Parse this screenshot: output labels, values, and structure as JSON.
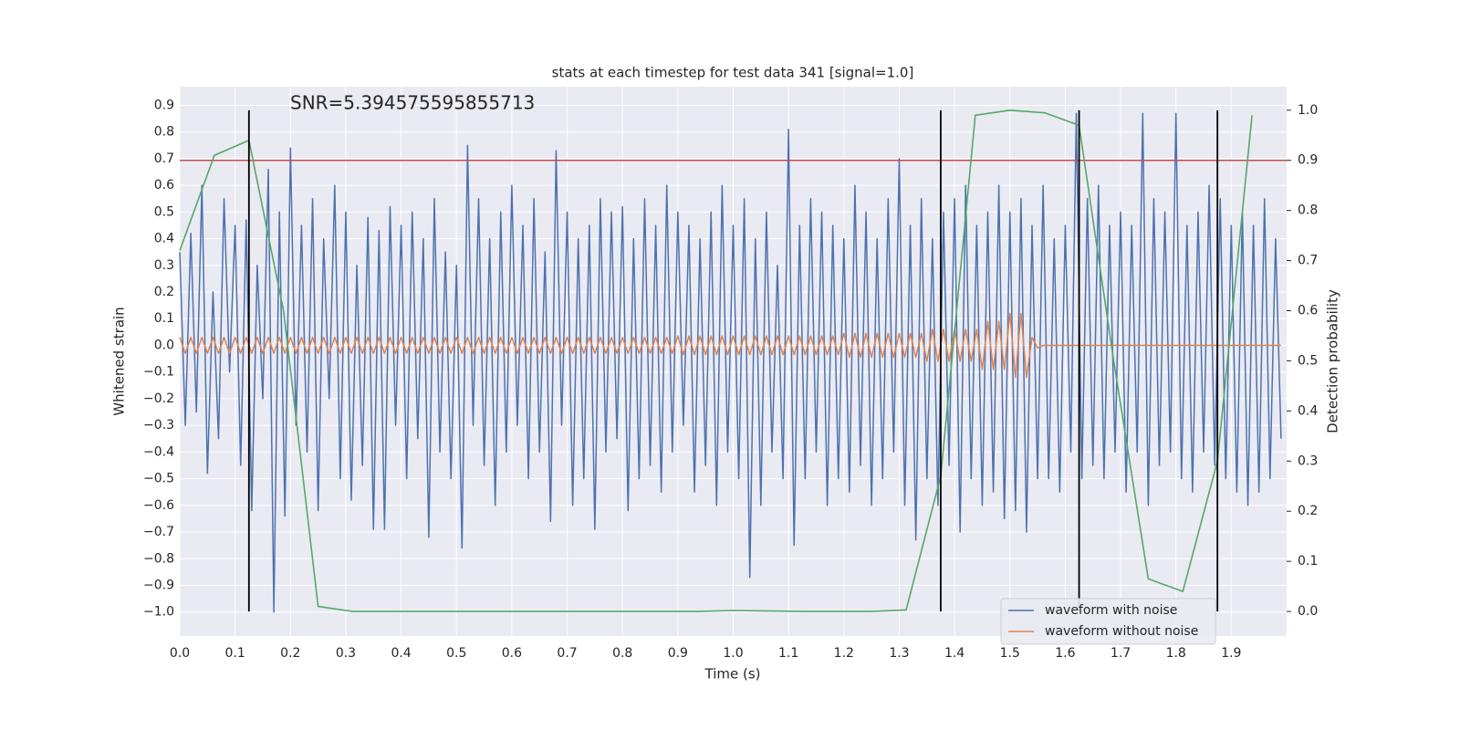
{
  "chart_data": {
    "type": "line",
    "title": "stats at each timestep for test data 341 [signal=1.0]",
    "annotation": "SNR=5.394575595855713",
    "x_label": "Time (s)",
    "y_label": "Whitened strain",
    "y2_label": "Detection probability",
    "xlim": [
      0,
      2
    ],
    "xticks": [
      {
        "value": 0,
        "label": "0.0"
      },
      0.1,
      0.2,
      0.3,
      0.4,
      0.5,
      0.6,
      0.7,
      0.8,
      0.9,
      {
        "value": 1,
        "label": "1.0"
      },
      1.1,
      1.2,
      1.3,
      1.4,
      1.5,
      1.6,
      1.7,
      1.8,
      1.9
    ],
    "ylim": [
      -1.09,
      0.97
    ],
    "yticks": [
      {
        "value": -1,
        "label": "−1.0"
      },
      {
        "value": -0.9,
        "label": "−0.9"
      },
      {
        "value": -0.8,
        "label": "−0.8"
      },
      {
        "value": -0.7,
        "label": "−0.7"
      },
      {
        "value": -0.6,
        "label": "−0.6"
      },
      {
        "value": -0.5,
        "label": "−0.5"
      },
      {
        "value": -0.4,
        "label": "−0.4"
      },
      {
        "value": -0.3,
        "label": "−0.3"
      },
      {
        "value": -0.2,
        "label": "−0.2"
      },
      {
        "value": -0.1,
        "label": "−0.1"
      },
      {
        "value": 0,
        "label": "0.0"
      },
      0.1,
      0.2,
      0.3,
      0.4,
      0.5,
      0.6,
      0.7,
      0.8,
      0.9
    ],
    "y2lim": [
      -0.049,
      1.047
    ],
    "y2ticks": [
      {
        "value": 0,
        "label": "0.0"
      },
      0.1,
      0.2,
      0.3,
      0.4,
      0.5,
      0.6,
      0.7,
      0.8,
      0.9,
      {
        "value": 1,
        "label": "1.0"
      }
    ],
    "grid": true,
    "legend": "lower right",
    "threshold": 0.9,
    "threshold_color": "#c44e52",
    "vlines": [
      0.125,
      1.375,
      1.625,
      1.875
    ],
    "vline_color": "#000000",
    "x": [
      0,
      0.01,
      0.02,
      0.03,
      0.04,
      0.05,
      0.06,
      0.07,
      0.08,
      0.09,
      0.1,
      0.11,
      0.12,
      0.13,
      0.14,
      0.15,
      0.16,
      0.17,
      0.18,
      0.19,
      0.2,
      0.21,
      0.22,
      0.23,
      0.24,
      0.25,
      0.26,
      0.27,
      0.28,
      0.29,
      0.3,
      0.31,
      0.32,
      0.33,
      0.34,
      0.35,
      0.36,
      0.37,
      0.38,
      0.39,
      0.4,
      0.41,
      0.42,
      0.43,
      0.44,
      0.45,
      0.46,
      0.47,
      0.48,
      0.49,
      0.5,
      0.51,
      0.52,
      0.53,
      0.54,
      0.55,
      0.56,
      0.57,
      0.58,
      0.59,
      0.6,
      0.61,
      0.62,
      0.63,
      0.64,
      0.65,
      0.66,
      0.67,
      0.68,
      0.69,
      0.7,
      0.71,
      0.72,
      0.73,
      0.74,
      0.75,
      0.76,
      0.77,
      0.78,
      0.79,
      0.8,
      0.81,
      0.82,
      0.83,
      0.84,
      0.85,
      0.86,
      0.87,
      0.88,
      0.89,
      0.9,
      0.91,
      0.92,
      0.93,
      0.94,
      0.95,
      0.96,
      0.97,
      0.98,
      0.99,
      1,
      1.01,
      1.02,
      1.03,
      1.04,
      1.05,
      1.06,
      1.07,
      1.08,
      1.09,
      1.1,
      1.11,
      1.12,
      1.13,
      1.14,
      1.15,
      1.16,
      1.17,
      1.18,
      1.19,
      1.2,
      1.21,
      1.22,
      1.23,
      1.24,
      1.25,
      1.26,
      1.27,
      1.28,
      1.29,
      1.3,
      1.31,
      1.32,
      1.33,
      1.34,
      1.35,
      1.36,
      1.37,
      1.38,
      1.39,
      1.4,
      1.41,
      1.42,
      1.43,
      1.44,
      1.45,
      1.46,
      1.47,
      1.48,
      1.49,
      1.5,
      1.51,
      1.52,
      1.53,
      1.54,
      1.55,
      1.56,
      1.57,
      1.58,
      1.59,
      1.6,
      1.61,
      1.62,
      1.63,
      1.64,
      1.65,
      1.66,
      1.67,
      1.68,
      1.69,
      1.7,
      1.71,
      1.72,
      1.73,
      1.74,
      1.75,
      1.76,
      1.77,
      1.78,
      1.79,
      1.8,
      1.81,
      1.82,
      1.83,
      1.84,
      1.85,
      1.86,
      1.87,
      1.88,
      1.89,
      1.9,
      1.91,
      1.92,
      1.93,
      1.94,
      1.95,
      1.96,
      1.97,
      1.98,
      1.99
    ],
    "series": [
      {
        "name": "waveform with noise",
        "color": "#4c72b0",
        "values": [
          0.35,
          -0.3,
          0.42,
          -0.25,
          0.6,
          -0.48,
          0.2,
          -0.35,
          0.55,
          -0.1,
          0.45,
          -0.45,
          0.47,
          -0.62,
          0.3,
          -0.2,
          0.66,
          -1.0,
          0.5,
          -0.64,
          0.74,
          -0.3,
          0.45,
          -0.4,
          0.55,
          -0.62,
          0.4,
          -0.2,
          0.6,
          -0.5,
          0.5,
          -0.58,
          0.3,
          -0.45,
          0.48,
          -0.69,
          0.43,
          -0.69,
          0.52,
          -0.3,
          0.45,
          -0.5,
          0.5,
          -0.35,
          0.4,
          -0.72,
          0.55,
          -0.4,
          0.35,
          -0.5,
          0.3,
          -0.76,
          0.75,
          -0.3,
          0.55,
          -0.45,
          0.4,
          -0.6,
          0.5,
          -0.4,
          0.6,
          -0.3,
          0.45,
          -0.5,
          0.55,
          -0.4,
          0.35,
          -0.66,
          0.73,
          -0.3,
          0.5,
          -0.6,
          0.4,
          -0.5,
          0.45,
          -0.69,
          0.55,
          -0.4,
          0.5,
          -0.35,
          0.52,
          -0.62,
          0.4,
          -0.5,
          0.55,
          -0.45,
          0.45,
          -0.55,
          0.6,
          -0.4,
          0.5,
          -0.3,
          0.45,
          -0.55,
          0.4,
          -0.45,
          0.5,
          -0.6,
          0.6,
          -0.4,
          0.45,
          -0.5,
          0.55,
          -0.87,
          0.4,
          -0.6,
          0.5,
          -0.4,
          0.3,
          -0.5,
          0.81,
          -0.75,
          0.45,
          -0.5,
          0.55,
          -0.4,
          0.5,
          -0.6,
          0.45,
          -0.5,
          0.4,
          -0.55,
          0.6,
          -0.45,
          0.5,
          -0.6,
          0.4,
          -0.5,
          0.55,
          -0.4,
          0.7,
          -0.6,
          0.45,
          -0.73,
          0.55,
          -0.5,
          0.4,
          -0.6,
          0.5,
          -0.45,
          0.55,
          -0.7,
          0.6,
          -0.5,
          0.45,
          -0.6,
          0.5,
          -0.55,
          0.6,
          -0.65,
          0.5,
          -0.62,
          0.55,
          -0.7,
          0.45,
          -0.5,
          0.6,
          -0.5,
          0.4,
          -0.55,
          0.45,
          -0.4,
          0.87,
          -0.5,
          0.55,
          -0.45,
          0.6,
          -0.5,
          0.45,
          -0.4,
          0.5,
          -0.55,
          0.45,
          -0.4,
          0.87,
          -0.6,
          0.55,
          -0.45,
          0.5,
          -0.4,
          0.87,
          -0.5,
          0.45,
          -0.55,
          0.5,
          -0.4,
          0.6,
          -0.45,
          0.55,
          -0.5,
          0.45,
          -0.55,
          0.5,
          -0.6,
          0.45,
          -0.55,
          0.55,
          -0.5,
          0.4,
          -0.35
        ]
      },
      {
        "name": "waveform without noise",
        "color": "#dd8452",
        "values": [
          0.03,
          -0.03,
          0.03,
          -0.03,
          0.03,
          -0.03,
          0.03,
          -0.03,
          0.03,
          -0.03,
          0.03,
          -0.03,
          0.03,
          -0.03,
          0.03,
          -0.03,
          0.03,
          -0.03,
          0.03,
          -0.03,
          0.03,
          -0.03,
          0.03,
          -0.03,
          0.03,
          -0.03,
          0.03,
          -0.03,
          0.03,
          -0.03,
          0.03,
          -0.03,
          0.03,
          -0.03,
          0.03,
          -0.03,
          0.03,
          -0.03,
          0.03,
          -0.03,
          0.03,
          -0.03,
          0.03,
          -0.03,
          0.03,
          -0.03,
          0.03,
          -0.03,
          0.03,
          -0.03,
          0.03,
          -0.03,
          0.03,
          -0.03,
          0.03,
          -0.03,
          0.03,
          -0.03,
          0.03,
          -0.03,
          0.03,
          -0.03,
          0.03,
          -0.03,
          0.03,
          -0.03,
          0.03,
          -0.03,
          0.03,
          -0.03,
          0.03,
          -0.03,
          0.03,
          -0.03,
          0.03,
          -0.03,
          0.03,
          -0.03,
          0.03,
          -0.03,
          0.03,
          -0.03,
          0.03,
          -0.03,
          0.03,
          -0.03,
          0.03,
          -0.03,
          0.03,
          -0.03,
          0.035,
          -0.035,
          0.035,
          -0.035,
          0.035,
          -0.035,
          0.035,
          -0.035,
          0.035,
          -0.035,
          0.035,
          -0.035,
          0.035,
          -0.035,
          0.035,
          -0.035,
          0.035,
          -0.035,
          0.035,
          -0.035,
          0.035,
          -0.035,
          0.035,
          -0.035,
          0.035,
          -0.035,
          0.035,
          -0.035,
          0.035,
          -0.035,
          0.045,
          -0.045,
          0.045,
          -0.045,
          0.045,
          -0.045,
          0.045,
          -0.045,
          0.045,
          -0.045,
          0.045,
          -0.045,
          0.045,
          -0.045,
          0.045,
          -0.06,
          0.06,
          -0.06,
          0.06,
          -0.06,
          0.06,
          -0.06,
          0.06,
          -0.06,
          0.06,
          -0.09,
          0.09,
          -0.09,
          0.09,
          -0.09,
          0.12,
          -0.12,
          0.12,
          -0.12,
          0.03,
          -0.01,
          0,
          0,
          0,
          0,
          0,
          0,
          0,
          0,
          0,
          0,
          0,
          0,
          0,
          0,
          0,
          0,
          0,
          0,
          0,
          0,
          0,
          0,
          0,
          0,
          0,
          0,
          0,
          0,
          0,
          0,
          0,
          0,
          0,
          0,
          0,
          0,
          0,
          0,
          0,
          0,
          0,
          0,
          0,
          0
        ]
      },
      {
        "color": "#55a868",
        "axis": "y2",
        "x": [
          0,
          0.0625,
          0.125,
          0.1875,
          0.25,
          0.3125,
          0.375,
          0.4375,
          0.5,
          0.5625,
          0.625,
          0.6875,
          0.75,
          0.8125,
          0.875,
          0.9375,
          1,
          1.0625,
          1.125,
          1.1875,
          1.25,
          1.3125,
          1.375,
          1.4375,
          1.5,
          1.5625,
          1.625,
          1.6875,
          1.75,
          1.8125,
          1.875,
          1.9375
        ],
        "values": [
          0.72,
          0.91,
          0.94,
          0.6,
          0.01,
          0.0,
          0.0,
          0.0,
          0.0,
          0.0,
          0.0,
          0.0,
          0.0,
          0.0,
          0.0,
          0.0,
          0.002,
          0.001,
          0.0,
          0.0,
          0.0,
          0.003,
          0.27,
          0.99,
          1.0,
          0.995,
          0.97,
          0.5,
          0.065,
          0.04,
          0.3,
          0.99
        ]
      }
    ]
  }
}
